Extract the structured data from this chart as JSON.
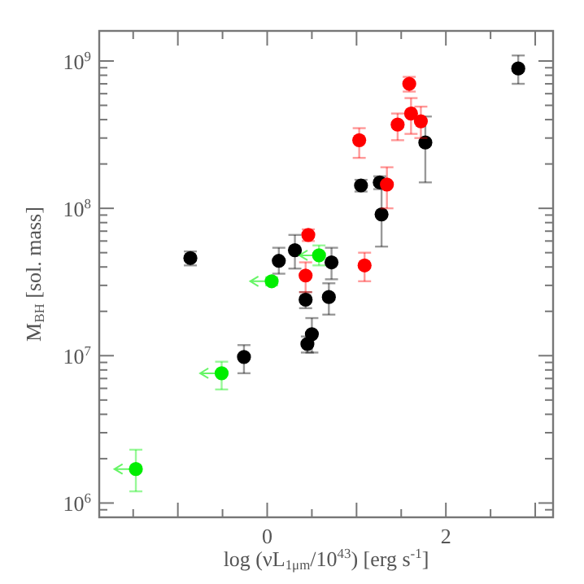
{
  "chart_data": {
    "type": "scatter",
    "xlabel": "log (νL$_{1μm}$/10$^{43}$) [erg s$^{-1}$]",
    "ylabel": "M$_{BH}$ [sol. mass]",
    "log": "y",
    "marker": "circle",
    "grid": false,
    "xlim": [
      -1.88,
      3.2
    ],
    "xticks": [
      {
        "value": -1.5,
        "label": null
      },
      {
        "value": -1,
        "label": null
      },
      {
        "value": -0.5,
        "label": null
      },
      0,
      {
        "value": 0.5,
        "label": null
      },
      {
        "value": 1,
        "label": null
      },
      {
        "value": 1.5,
        "label": null
      },
      2,
      {
        "value": 2.5,
        "label": null
      },
      {
        "value": 3,
        "label": null
      }
    ],
    "ylim": [
      800000,
      1600000000
    ],
    "yticks": [
      {
        "value": 900000,
        "label": null
      },
      {
        "value": 1000000,
        "label": "10$^{6}$"
      },
      {
        "value": 2000000,
        "label": null
      },
      {
        "value": 3000000,
        "label": null
      },
      {
        "value": 4000000,
        "label": null
      },
      {
        "value": 5000000,
        "label": null
      },
      {
        "value": 6000000,
        "label": null
      },
      {
        "value": 7000000,
        "label": null
      },
      {
        "value": 8000000,
        "label": null
      },
      {
        "value": 9000000,
        "label": null
      },
      {
        "value": 10000000,
        "label": "10$^{7}$"
      },
      {
        "value": 20000000,
        "label": null
      },
      {
        "value": 30000000,
        "label": null
      },
      {
        "value": 40000000,
        "label": null
      },
      {
        "value": 50000000,
        "label": null
      },
      {
        "value": 60000000,
        "label": null
      },
      {
        "value": 70000000,
        "label": null
      },
      {
        "value": 80000000,
        "label": null
      },
      {
        "value": 90000000,
        "label": null
      },
      {
        "value": 100000000,
        "label": "10$^{8}$"
      },
      {
        "value": 200000000,
        "label": null
      },
      {
        "value": 300000000,
        "label": null
      },
      {
        "value": 400000000,
        "label": null
      },
      {
        "value": 500000000,
        "label": null
      },
      {
        "value": 600000000,
        "label": null
      },
      {
        "value": 700000000,
        "label": null
      },
      {
        "value": 800000000,
        "label": null
      },
      {
        "value": 900000000,
        "label": null
      },
      {
        "value": 1000000000,
        "label": "10$^{9}$"
      }
    ],
    "series": [
      {
        "color": "#000000",
        "x": [
          2.81,
          -0.86,
          0.13,
          0.31,
          0.72,
          1.05,
          1.26,
          1.28,
          1.77,
          0.43,
          0.69,
          0.45,
          0.5,
          -0.26
        ],
        "values": [
          890000000,
          46000000,
          44000000,
          52000000,
          43000000,
          143000000,
          150000000,
          91000000,
          280000000,
          24000000,
          25000000,
          12000000,
          14000000,
          9800000
        ],
        "errors": [
          [
            700000000,
            1090000000
          ],
          [
            41000000,
            51000000
          ],
          [
            36000000,
            54000000
          ],
          [
            39000000,
            66000000
          ],
          [
            33000000,
            54000000
          ],
          [
            130000000,
            156000000
          ],
          [
            135000000,
            165000000
          ],
          [
            55000000,
            150000000
          ],
          [
            150000000,
            420000000
          ],
          [
            21000000,
            27000000
          ],
          [
            19000000,
            31000000
          ],
          [
            10500000,
            13500000
          ],
          [
            10500000,
            18000000
          ],
          [
            7600000,
            11800000
          ]
        ]
      },
      {
        "color": "#ff0000",
        "x": [
          0.46,
          0.43,
          1.03,
          1.09,
          1.34,
          1.46,
          1.59,
          1.61,
          1.72
        ],
        "values": [
          66000000,
          35000000,
          290000000,
          41000000,
          145000000,
          370000000,
          700000000,
          440000000,
          390000000
        ],
        "errors": [
          [
            60000000,
            72000000
          ],
          [
            27000000,
            43000000
          ],
          [
            220000000,
            350000000
          ],
          [
            32000000,
            50000000
          ],
          [
            100000000,
            190000000
          ],
          [
            290000000,
            440000000
          ],
          [
            620000000,
            780000000
          ],
          [
            320000000,
            560000000
          ],
          [
            300000000,
            490000000
          ]
        ]
      },
      {
        "color": "#00ee00",
        "x": [
          0.58,
          0.05,
          -0.51,
          -1.47
        ],
        "values": [
          48000000,
          32000000,
          7600000,
          1700000
        ],
        "errors": [
          [
            41000000,
            56000000
          ],
          [
            30000000,
            34000000
          ],
          [
            5900000,
            9100000
          ],
          [
            1200000,
            2300000
          ]
        ],
        "xerrors": [
          [
            0.36,
            0.58
          ],
          [
            -0.19,
            0.05
          ],
          [
            -0.75,
            -0.51
          ],
          [
            -1.71,
            -1.47
          ]
        ]
      }
    ]
  }
}
